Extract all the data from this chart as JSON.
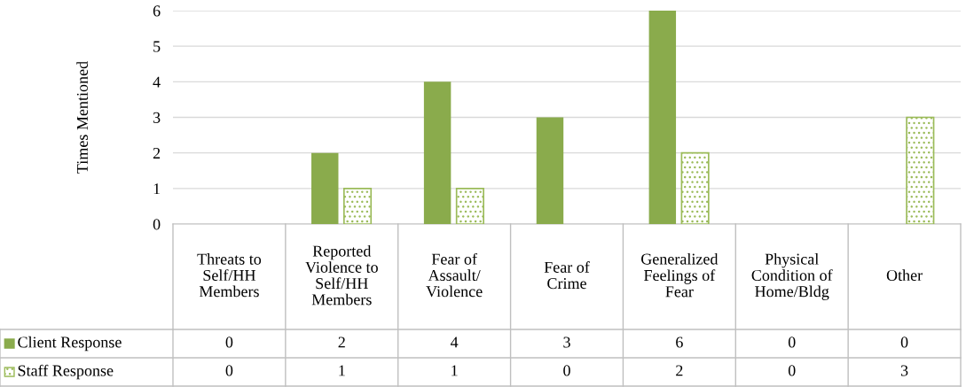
{
  "chart_data": {
    "type": "bar",
    "ylabel": "Times Mentioned",
    "categories": [
      "Threats to\nSelf/HH\nMembers",
      "Reported\nViolence to\nSelf/HH\nMembers",
      "Fear of\nAssault/\nViolence",
      "Fear of\nCrime",
      "Generalized\nFeelings of\nFear",
      "Physical\nCondition of\nHome/Bldg",
      "Other"
    ],
    "series": [
      {
        "name": "Client Response",
        "color": "#8aab4c",
        "values": [
          0,
          2,
          4,
          3,
          6,
          0,
          0
        ]
      },
      {
        "name": "Staff Response",
        "color": "#9bbb59",
        "values": [
          0,
          1,
          1,
          0,
          2,
          0,
          3
        ]
      }
    ],
    "ylim": [
      0,
      6
    ],
    "yticks": [
      0,
      1,
      2,
      3,
      4,
      5,
      6
    ],
    "grid": "y",
    "legend": "bottom left",
    "data_labels": true
  }
}
